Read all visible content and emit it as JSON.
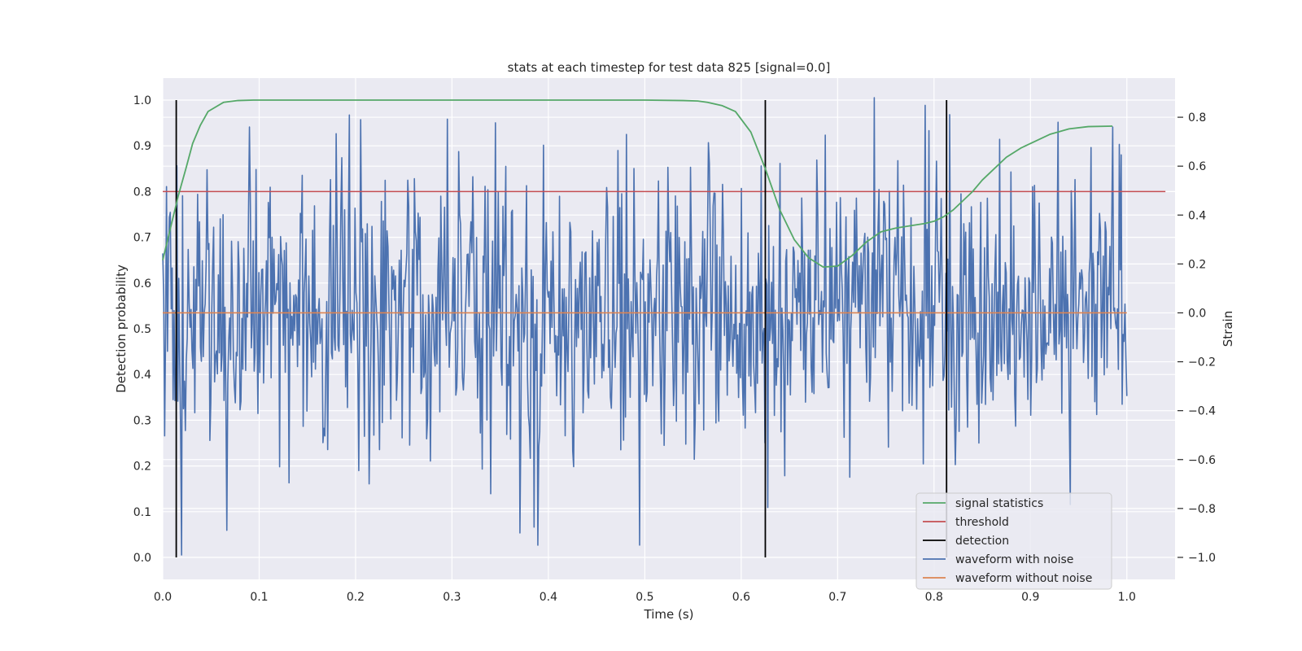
{
  "chart_data": {
    "type": "line",
    "title": "stats at each timestep for test data 825 [signal=0.0]",
    "xlabel": "Time (s)",
    "ylabel_left": "Detection probability",
    "ylabel_right": "Strain",
    "xlim": [
      0.0,
      1.05
    ],
    "ylim_left": [
      -0.048,
      1.048
    ],
    "ylim_right": [
      -1.09,
      0.96
    ],
    "x_ticks": [
      "0.0",
      "0.1",
      "0.2",
      "0.3",
      "0.4",
      "0.5",
      "0.6",
      "0.7",
      "0.8",
      "0.9",
      "1.0"
    ],
    "y_ticks_left": [
      "0.0",
      "0.1",
      "0.2",
      "0.3",
      "0.4",
      "0.5",
      "0.6",
      "0.7",
      "0.8",
      "0.9",
      "1.0"
    ],
    "y_ticks_right": [
      "−1.0",
      "−0.8",
      "−0.6",
      "−0.4",
      "−0.2",
      "0.0",
      "0.2",
      "0.4",
      "0.6",
      "0.8"
    ],
    "grid": true,
    "legend_position": "lower-right",
    "colors": {
      "signal_statistics": "#55a868",
      "threshold": "#c44e52",
      "detection": "#000000",
      "waveform_noise": "#4c72b0",
      "waveform_clean": "#dd8452",
      "plot_bg": "#eaeaf2",
      "grid": "#ffffff"
    },
    "series": [
      {
        "name": "signal statistics",
        "axis": "left",
        "x": [
          0.0,
          0.008,
          0.016,
          0.024,
          0.031,
          0.039,
          0.047,
          0.063,
          0.078,
          0.094,
          0.125,
          0.2,
          0.3,
          0.4,
          0.5,
          0.54,
          0.555,
          0.565,
          0.58,
          0.594,
          0.61,
          0.625,
          0.64,
          0.655,
          0.67,
          0.685,
          0.7,
          0.715,
          0.73,
          0.745,
          0.76,
          0.775,
          0.79,
          0.8,
          0.81,
          0.82,
          0.83,
          0.84,
          0.85,
          0.86,
          0.875,
          0.89,
          0.905,
          0.92,
          0.94,
          0.96,
          0.985
        ],
        "y": [
          0.65,
          0.72,
          0.79,
          0.85,
          0.905,
          0.945,
          0.975,
          0.995,
          0.999,
          1.0,
          1.0,
          1.0,
          1.0,
          1.0,
          1.0,
          0.999,
          0.998,
          0.995,
          0.988,
          0.975,
          0.93,
          0.85,
          0.76,
          0.695,
          0.655,
          0.635,
          0.637,
          0.66,
          0.69,
          0.712,
          0.72,
          0.725,
          0.73,
          0.735,
          0.745,
          0.76,
          0.78,
          0.8,
          0.825,
          0.845,
          0.875,
          0.895,
          0.91,
          0.925,
          0.937,
          0.942,
          0.943
        ]
      },
      {
        "name": "threshold",
        "axis": "left",
        "x": [
          0.0,
          1.04
        ],
        "y": [
          0.8,
          0.8
        ]
      },
      {
        "name": "detection",
        "axis": "left",
        "type": "vlines",
        "x": [
          0.014,
          0.625,
          0.813
        ],
        "ymin": 0.0,
        "ymax": 1.0
      },
      {
        "name": "waveform with noise",
        "axis": "right",
        "x_range": [
          0.0,
          1.0
        ],
        "samples": 1024,
        "seed": 825,
        "amplitude_std": 0.29,
        "extremes": [
          [
            0.02,
            -0.99
          ],
          [
            0.37,
            -0.9
          ],
          [
            0.738,
            0.88
          ],
          [
            0.09,
            0.76
          ],
          [
            0.205,
            0.79
          ],
          [
            0.985,
            0.76
          ]
        ]
      },
      {
        "name": "waveform without noise",
        "axis": "right",
        "x": [
          0.0,
          1.0
        ],
        "y": [
          0.0,
          0.0
        ]
      }
    ]
  }
}
